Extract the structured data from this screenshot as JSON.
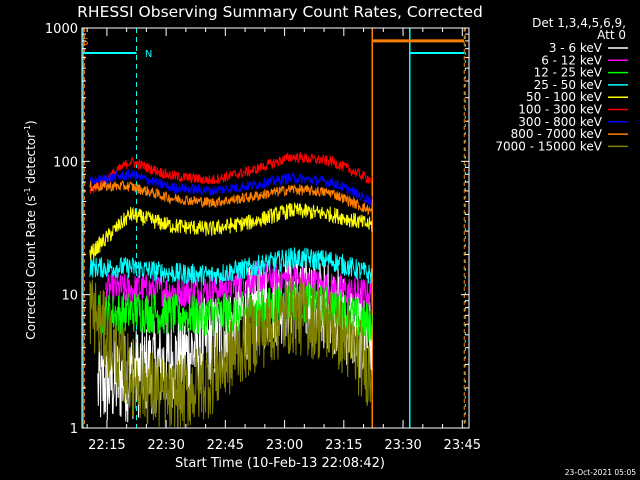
{
  "chart_data": {
    "type": "line",
    "title": "RHESSI Observing Summary Count Rates, Corrected",
    "xlabel": "Start Time (10-Feb-13 22:08:42)",
    "ylabel_main": "Corrected Count Rate (s",
    "ylabel_sup1": "-1",
    "ylabel_mid": " detector",
    "ylabel_sup2": "-1",
    "ylabel_end": ")",
    "yscale": "log",
    "ylim": [
      1,
      1000
    ],
    "xlim_minutes": [
      0,
      98
    ],
    "x_ticks": [
      {
        "label": "22:15",
        "minute": 6.3
      },
      {
        "label": "22:30",
        "minute": 21.3
      },
      {
        "label": "22:45",
        "minute": 36.3
      },
      {
        "label": "23:00",
        "minute": 51.3
      },
      {
        "label": "23:15",
        "minute": 66.3
      },
      {
        "label": "23:30",
        "minute": 81.3
      },
      {
        "label": "23:45",
        "minute": 96.3
      }
    ],
    "y_ticks": [
      {
        "label": "1",
        "value": 1
      },
      {
        "label": "10",
        "value": 10
      },
      {
        "label": "100",
        "value": 100
      },
      {
        "label": "1000",
        "value": 1000
      }
    ],
    "legend_header": [
      "Det 1,3,4,5,6,9,",
      "Att 0"
    ],
    "legend_position": "top-right",
    "series": [
      {
        "name": "3 - 6 keV",
        "color": "#ffffff",
        "start": 4.0,
        "base": [
          2.0,
          2.6,
          3.2,
          4.8,
          8.0,
          10.0,
          8.0,
          4.2
        ],
        "noise": 0.35
      },
      {
        "name": "6 - 12 keV",
        "color": "#ff00ff",
        "start": 6.0,
        "base": [
          11.0,
          11.0,
          10.5,
          11.0,
          13.5,
          13.0,
          11.0,
          10.0
        ],
        "noise": 0.12
      },
      {
        "name": "12 - 25 keV",
        "color": "#00ff00",
        "start": 4.0,
        "base": [
          7.0,
          7.5,
          7.0,
          7.0,
          7.5,
          9.0,
          8.0,
          6.0
        ],
        "noise": 0.16
      },
      {
        "name": "25 - 50 keV",
        "color": "#00ffff",
        "start": 2.0,
        "base": [
          16.0,
          16.0,
          14.5,
          14.0,
          16.0,
          19.0,
          18.0,
          14.0
        ],
        "noise": 0.08
      },
      {
        "name": "50 - 100 keV",
        "color": "#ffff00",
        "start": 2.0,
        "base": [
          20.0,
          40.0,
          33.0,
          31.0,
          35.0,
          43.0,
          40.0,
          33.0
        ],
        "noise": 0.06
      },
      {
        "name": "100 - 300 keV",
        "color": "#ff0000",
        "start": 2.0,
        "base": [
          60.0,
          100.0,
          78.0,
          72.0,
          85.0,
          108.0,
          100.0,
          72.0
        ],
        "noise": 0.04
      },
      {
        "name": "300 - 800 keV",
        "color": "#0000ff",
        "start": 2.0,
        "base": [
          70.0,
          80.0,
          64.0,
          60.0,
          66.0,
          75.0,
          70.0,
          50.0
        ],
        "noise": 0.04
      },
      {
        "name": "800 - 7000 keV",
        "color": "#ff8000",
        "start": 2.0,
        "base": [
          65.0,
          65.0,
          53.0,
          49.0,
          54.0,
          62.0,
          58.0,
          42.0
        ],
        "noise": 0.04
      },
      {
        "name": "7000 - 15000 keV",
        "color": "#808000",
        "start": 2.0,
        "base": [
          8.0,
          2.5,
          1.6,
          2.4,
          5.0,
          7.0,
          6.0,
          2.6
        ],
        "noise": 0.3
      }
    ],
    "annotations": [
      {
        "label": "S",
        "color": "#ff8000",
        "x_min": 0.3,
        "value": 800
      },
      {
        "label": "N",
        "color": "#00ffff",
        "x_min": 15.4,
        "value": 650
      }
    ],
    "footer_date": "23-Oct-2021 05:05"
  }
}
